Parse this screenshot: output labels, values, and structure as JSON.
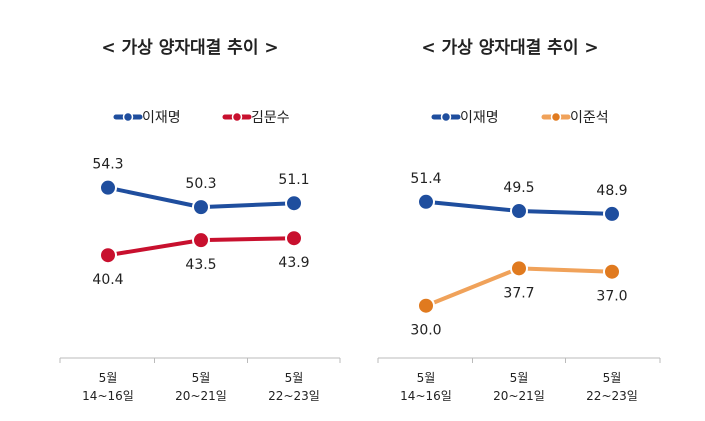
{
  "chart_data": [
    {
      "type": "line",
      "title": "< 가상 양자대결 추이 >",
      "categories": [
        [
          "5월",
          "14~16일"
        ],
        [
          "5월",
          "20~21일"
        ],
        [
          "5월",
          "22~23일"
        ]
      ],
      "series": [
        {
          "name": "이재명",
          "values": [
            54.3,
            50.3,
            51.1
          ],
          "color": "#1f4e9e",
          "labels": [
            "54.3",
            "50.3",
            "51.1"
          ],
          "label_pos": "above"
        },
        {
          "name": "김문수",
          "values": [
            40.4,
            43.5,
            43.9
          ],
          "color": "#c8102e",
          "labels": [
            "40.4",
            "43.5",
            "43.9"
          ],
          "label_pos": "below"
        }
      ],
      "xlabel": "",
      "ylabel": "",
      "ylim": [
        25,
        60
      ],
      "grid": false,
      "legend": "top-center"
    },
    {
      "type": "line",
      "title": "< 가상 양자대결 추이 >",
      "categories": [
        [
          "5월",
          "14~16일"
        ],
        [
          "5월",
          "20~21일"
        ],
        [
          "5월",
          "22~23일"
        ]
      ],
      "series": [
        {
          "name": "이재명",
          "values": [
            51.4,
            49.5,
            48.9
          ],
          "color": "#1f4e9e",
          "labels": [
            "51.4",
            "49.5",
            "48.9"
          ],
          "label_pos": "above"
        },
        {
          "name": "이준석",
          "values": [
            30.0,
            37.7,
            37.0
          ],
          "color": "#e07a1f",
          "line_color": "#f0a25a",
          "labels": [
            "30.0",
            "37.7",
            "37.0"
          ],
          "label_pos": "below"
        }
      ],
      "xlabel": "",
      "ylabel": "",
      "ylim": [
        25,
        60
      ],
      "grid": false,
      "legend": "top-center"
    }
  ]
}
